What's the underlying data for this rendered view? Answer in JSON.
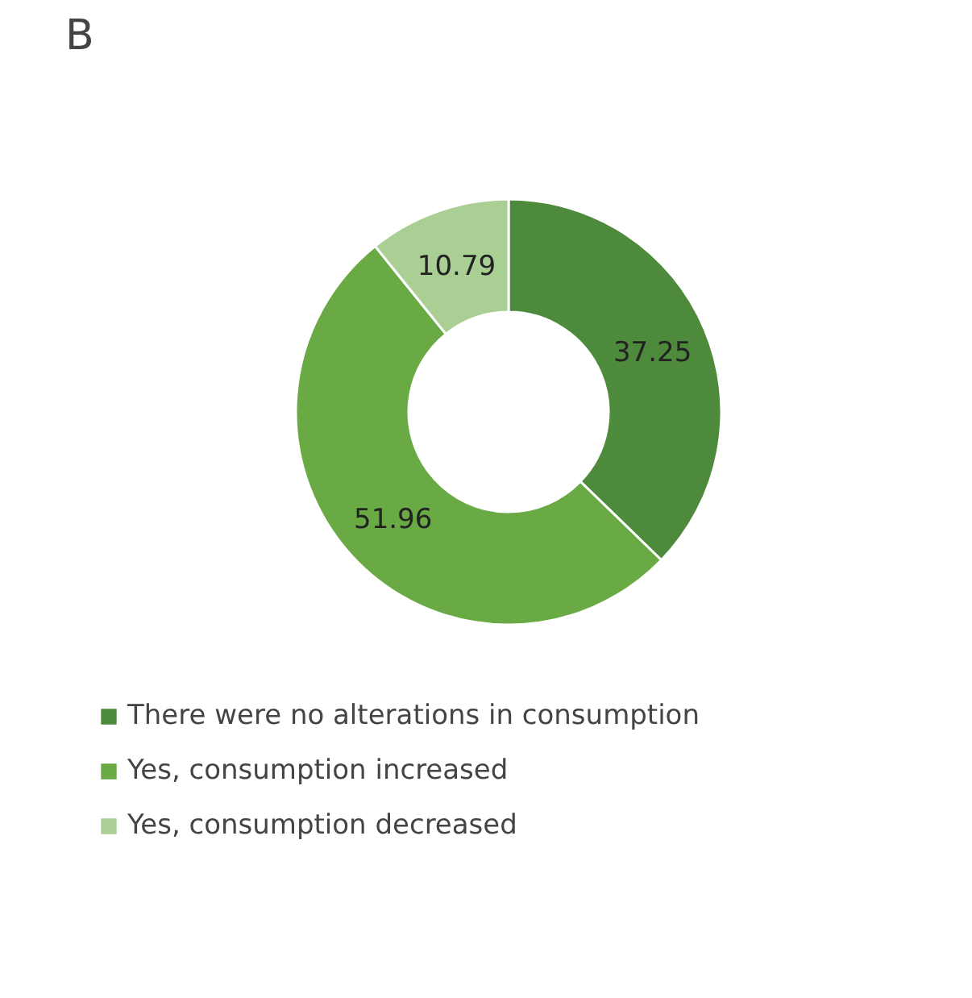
{
  "chart_data": {
    "type": "donut",
    "title": "B",
    "categories": [
      "There were no alterations in consumption",
      "Yes, consumption increased",
      "Yes, consumption decreased"
    ],
    "values": [
      37.25,
      51.96,
      10.79
    ],
    "colors": [
      "#4e8a3b",
      "#6aaa45",
      "#a9cf94"
    ],
    "data_labels": true,
    "legend": "bottom"
  }
}
